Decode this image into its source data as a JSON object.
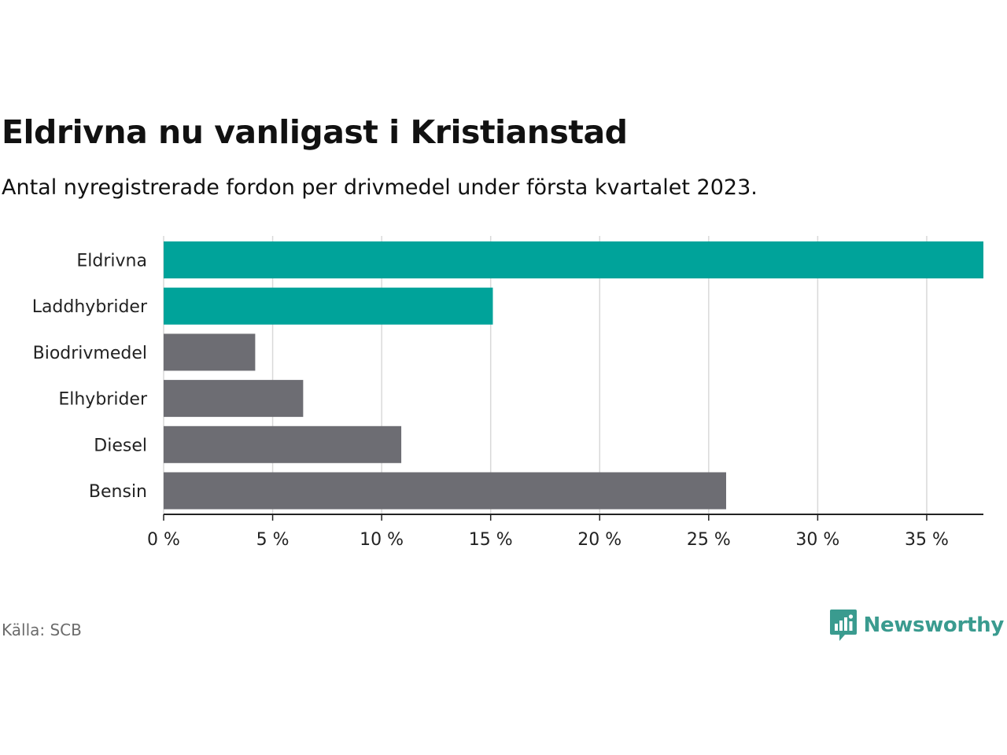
{
  "chart_data": {
    "type": "bar",
    "orientation": "horizontal",
    "title": "Eldrivna nu vanligast i Kristianstad",
    "subtitle": "Antal nyregistrerade fordon per drivmedel under första kvartalet 2023.",
    "categories": [
      "Eldrivna",
      "Laddhybrider",
      "Biodrivmedel",
      "Elhybrider",
      "Diesel",
      "Bensin"
    ],
    "values": [
      37.6,
      15.1,
      4.2,
      6.4,
      10.9,
      25.8
    ],
    "highlighted": [
      true,
      true,
      false,
      false,
      false,
      false
    ],
    "xlim": [
      0,
      37.6
    ],
    "ticks": [
      0,
      5,
      10,
      15,
      20,
      25,
      30,
      35
    ],
    "tick_labels": [
      "0 %",
      "5 %",
      "10 %",
      "15 %",
      "20 %",
      "25 %",
      "30 %",
      "35 %"
    ],
    "xlabel": "",
    "ylabel": "",
    "grid": true,
    "legend": "none",
    "colors": {
      "highlight": "#00a39a",
      "default": "#6d6d73",
      "grid": "#d9d9d9",
      "axis": "#222222"
    }
  },
  "footer": {
    "source": "Källa: SCB",
    "brand": "Newsworthy",
    "brand_color": "#3a9b8f",
    "brand_icon": "bar-chart-speech-bubble-icon"
  }
}
